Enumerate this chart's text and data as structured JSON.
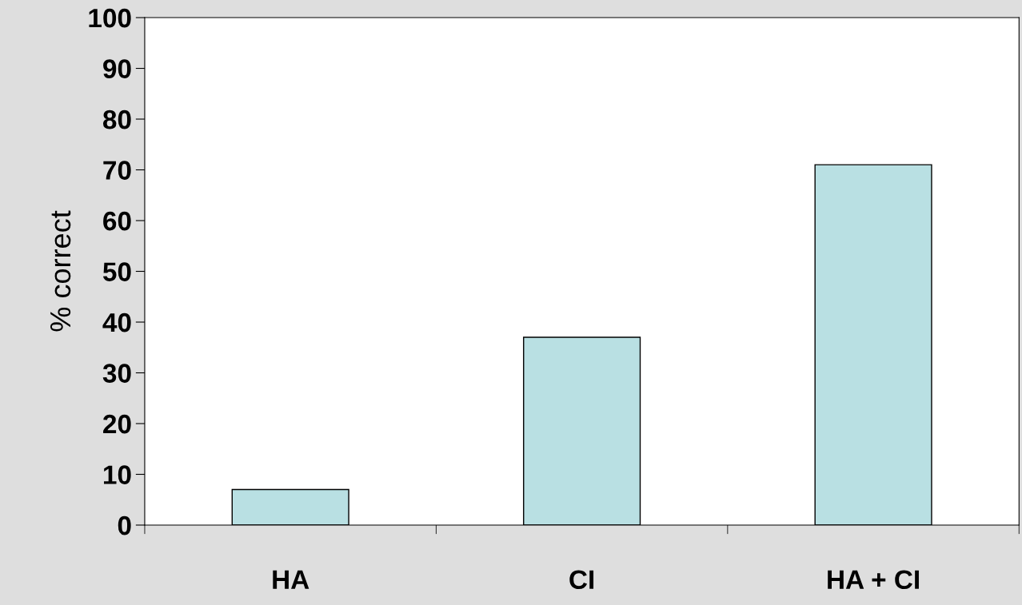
{
  "chart_data": {
    "type": "bar",
    "ylabel": "% correct",
    "categories": [
      "HA",
      "CI",
      "HA + CI"
    ],
    "values": [
      7,
      37,
      71
    ],
    "color": "#b9e0e3",
    "ylim": [
      0,
      100
    ],
    "yticks": [
      0,
      10,
      20,
      30,
      40,
      50,
      60,
      70,
      80,
      90,
      100
    ],
    "grid": false,
    "legend": false
  }
}
